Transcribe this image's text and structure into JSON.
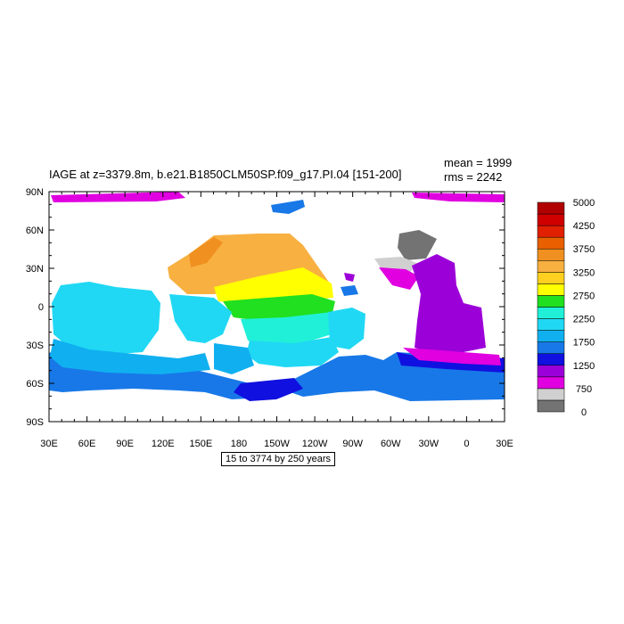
{
  "title": "IAGE at z=3379.8m, b.e21.B1850CLM50SP.f09_g17.PI.04 [151-200]",
  "stats": {
    "mean": "mean = 1999",
    "rms": "rms = 2242"
  },
  "info_label": "15 to 3774 by 250 years",
  "axes": {
    "lat_ticks": [
      "90N",
      "60N",
      "30N",
      "0",
      "30S",
      "60S",
      "90S"
    ],
    "lon_ticks": [
      "30E",
      "60E",
      "90E",
      "120E",
      "150E",
      "180",
      "150W",
      "120W",
      "90W",
      "60W",
      "30W",
      "0",
      "30E"
    ]
  },
  "colorbar": {
    "colors": [
      "#737373",
      "#d0d0d0",
      "#e000e0",
      "#9c00d8",
      "#1010e0",
      "#1878e8",
      "#10b0f0",
      "#20d8f4",
      "#20f0d8",
      "#20e020",
      "#ffff00",
      "#ffd020",
      "#f8b040",
      "#f09020",
      "#e86000",
      "#e02000",
      "#d00000",
      "#b00000"
    ],
    "labels": [
      "0",
      "750",
      "1250",
      "1750",
      "2250",
      "2750",
      "3250",
      "3750",
      "4250",
      "5000"
    ]
  },
  "colors": {
    "land": "#ffffff",
    "frame": "#000000"
  }
}
